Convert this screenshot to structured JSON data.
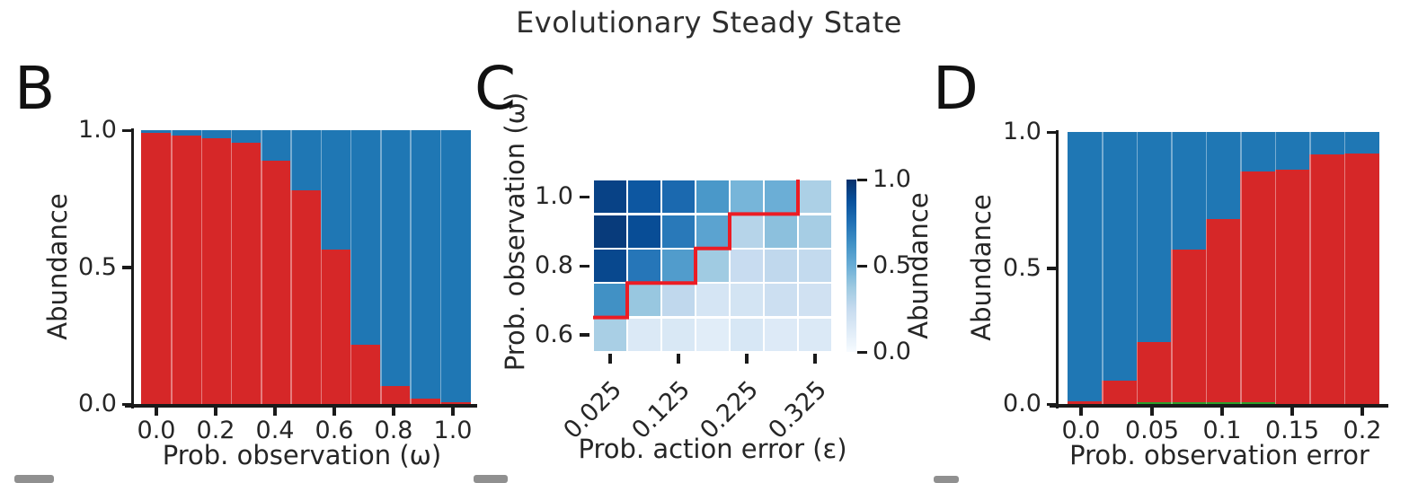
{
  "title": "Evolutionary Steady State",
  "colors": {
    "red": "#d62728",
    "blue": "#1f77b4",
    "green": "#2ca02c",
    "red_line": "#ec1c24",
    "axis": "#1a1a1a",
    "text": "#262626",
    "separator": "rgba(255,255,255,0.4)"
  },
  "chart_data": [
    {
      "id": "panel-b",
      "panel_label": "B",
      "type": "bar",
      "stacked": true,
      "xlabel": "Prob. observation (ω)",
      "ylabel": "Abundance",
      "ylim": [
        0.0,
        1.0
      ],
      "x": [
        0.0,
        0.1,
        0.2,
        0.3,
        0.4,
        0.5,
        0.6,
        0.7,
        0.8,
        0.9,
        1.0
      ],
      "xtick_labels": [
        "0.0",
        "0.2",
        "0.4",
        "0.6",
        "0.8",
        "1.0"
      ],
      "ytick_labels": [
        "1.0",
        "0.5",
        "0.0"
      ],
      "series": [
        {
          "name": "red",
          "color": "#d62728",
          "values": [
            0.99,
            0.98,
            0.97,
            0.955,
            0.89,
            0.78,
            0.565,
            0.215,
            0.065,
            0.02,
            0.008
          ]
        },
        {
          "name": "blue",
          "color": "#1f77b4",
          "values": [
            0.01,
            0.02,
            0.03,
            0.045,
            0.11,
            0.22,
            0.435,
            0.785,
            0.935,
            0.98,
            0.992
          ]
        }
      ]
    },
    {
      "id": "panel-c",
      "panel_label": "C",
      "type": "heatmap",
      "xlabel": "Prob. action error (ε)",
      "ylabel": "Prob. observation (ω)",
      "colorbar_label": "Abundance",
      "colorbar_tick_labels": [
        "1.0",
        "0.5",
        "0.0"
      ],
      "rows_omega_top_to_bottom": [
        "1.0",
        "0.9",
        "0.8",
        "0.7",
        "0.6"
      ],
      "cols_epsilon": [
        "0.025",
        "0.075",
        "0.125",
        "0.175",
        "0.225",
        "0.275",
        "0.325"
      ],
      "ytick_labels": [
        "1.0",
        "0.8",
        "0.6"
      ],
      "ytick_row_index": [
        0,
        2,
        4
      ],
      "xtick_labels": [
        "0.025",
        "0.125",
        "0.225",
        "0.325"
      ],
      "xtick_col_index": [
        0,
        2,
        4,
        6
      ],
      "values": [
        [
          0.93,
          0.85,
          0.78,
          0.6,
          0.47,
          0.5,
          0.33
        ],
        [
          0.96,
          0.89,
          0.72,
          0.55,
          0.3,
          0.42,
          0.35
        ],
        [
          0.91,
          0.73,
          0.58,
          0.37,
          0.24,
          0.27,
          0.26
        ],
        [
          0.63,
          0.39,
          0.27,
          0.17,
          0.18,
          0.22,
          0.2
        ],
        [
          0.34,
          0.14,
          0.15,
          0.11,
          0.16,
          0.13,
          0.14
        ]
      ],
      "red_line_cell_path": [
        [
          0,
          4
        ],
        [
          1,
          4
        ],
        [
          1,
          3
        ],
        [
          3,
          3
        ],
        [
          3,
          2
        ],
        [
          4,
          2
        ],
        [
          4,
          1
        ],
        [
          6,
          1
        ],
        [
          6,
          0
        ]
      ],
      "colormap_stops": [
        [
          0.0,
          "#f7fbff"
        ],
        [
          0.125,
          "#deebf7"
        ],
        [
          0.25,
          "#c6dbef"
        ],
        [
          0.375,
          "#9ecae1"
        ],
        [
          0.5,
          "#6baed6"
        ],
        [
          0.625,
          "#4292c6"
        ],
        [
          0.75,
          "#2171b5"
        ],
        [
          0.875,
          "#08519c"
        ],
        [
          1.0,
          "#08306b"
        ]
      ]
    },
    {
      "id": "panel-d",
      "panel_label": "D",
      "type": "bar",
      "stacked": true,
      "xlabel": "Prob. observation error",
      "ylabel": "Abundance",
      "ylim": [
        0.0,
        1.0
      ],
      "x": [
        0.0,
        0.025,
        0.05,
        0.075,
        0.1,
        0.125,
        0.15,
        0.175,
        0.2
      ],
      "xtick_labels": [
        "0.0",
        "0.05",
        "0.1",
        "0.15",
        "0.2"
      ],
      "ytick_labels": [
        "1.0",
        "0.5",
        "0.0"
      ],
      "series": [
        {
          "name": "green",
          "color": "#2ca02c",
          "values": [
            0,
            0,
            0.008,
            0.008,
            0.008,
            0.005,
            0,
            0,
            0
          ]
        },
        {
          "name": "red",
          "color": "#d62728",
          "values": [
            0.01,
            0.085,
            0.22,
            0.56,
            0.672,
            0.85,
            0.862,
            0.917,
            0.922
          ]
        },
        {
          "name": "blue",
          "color": "#1f77b4",
          "values": [
            0.99,
            0.915,
            0.772,
            0.432,
            0.32,
            0.145,
            0.138,
            0.083,
            0.078
          ]
        }
      ]
    }
  ]
}
